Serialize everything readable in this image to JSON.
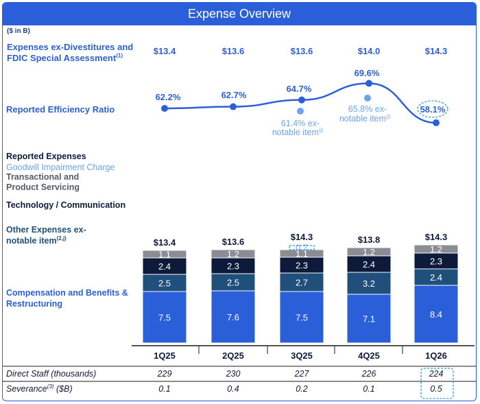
{
  "title": "Expense Overview",
  "units": "($ in B)",
  "labels": {
    "expenses_ex_line1": "Expenses ex-Divestitures and",
    "expenses_ex_line2": "FDIC Special Assessment",
    "expenses_ex_sup": "(1)",
    "efficiency": "Reported Efficiency Ratio",
    "reported_expenses": "Reported Expenses",
    "goodwill": "Goodwill Impairment Charge",
    "transactional_line1": "Transactional and",
    "transactional_line2": "Product Servicing",
    "technology": "Technology / Communication",
    "other_line1": "Other Expenses ex-",
    "other_line2": "notable item",
    "other_sup": "(2,j)",
    "comp_line1": "Compensation and Benefits &",
    "comp_line2": "Restructuring"
  },
  "chart_data": {
    "type": "bar",
    "categories": [
      "1Q25",
      "2Q25",
      "3Q25",
      "4Q25",
      "1Q26"
    ],
    "expenses_ex_divestitures": [
      "$13.4",
      "$13.6",
      "$13.6",
      "$14.0",
      "$14.3"
    ],
    "efficiency_ratio": {
      "values": [
        62.2,
        62.7,
        64.7,
        69.6,
        58.1
      ],
      "labels": [
        "62.2%",
        "62.7%",
        "64.7%",
        "69.6%",
        "58.1%"
      ],
      "ex_notable": [
        {
          "category": "3Q25",
          "value": 61.4,
          "line1": "61.4% ex-",
          "line2": "notable item",
          "sup": "(j)"
        },
        {
          "category": "4Q25",
          "value": 65.8,
          "line1": "65.8% ex-",
          "line2": "notable item",
          "sup": "(j)"
        }
      ]
    },
    "totals": [
      "$13.4",
      "$13.6",
      "$14.3",
      "$13.8",
      "$14.3"
    ],
    "series": [
      {
        "key": "comp",
        "values": [
          7.5,
          7.6,
          7.5,
          7.1,
          8.4
        ],
        "color": "#2b5fd9",
        "text_color": "#ffffff"
      },
      {
        "key": "other",
        "values": [
          2.5,
          2.5,
          2.7,
          3.2,
          2.4
        ],
        "color": "#1f4f7a",
        "text_color": "#ffffff"
      },
      {
        "key": "technology",
        "values": [
          2.4,
          2.3,
          2.3,
          2.4,
          2.3
        ],
        "color": "#0e1a3a",
        "text_color": "#ffffff"
      },
      {
        "key": "transactional",
        "values": [
          1.1,
          1.2,
          1.1,
          1.2,
          1.2
        ],
        "color": "#8a8d93",
        "text_color": "#ffffff"
      },
      {
        "key": "goodwill",
        "values": [
          0,
          0,
          0.7,
          0,
          0
        ],
        "color": "none",
        "text_color": "#6aa3ee"
      }
    ]
  },
  "table": {
    "rows": [
      {
        "label": "Direct Staff (thousands)",
        "sup": "",
        "suffix": "",
        "values": [
          "229",
          "230",
          "227",
          "226",
          "224"
        ]
      },
      {
        "label": "Severance",
        "sup": "(3)",
        "suffix": " ($B)",
        "values": [
          "0.1",
          "0.4",
          "0.2",
          "0.1",
          "0.5"
        ]
      }
    ]
  }
}
